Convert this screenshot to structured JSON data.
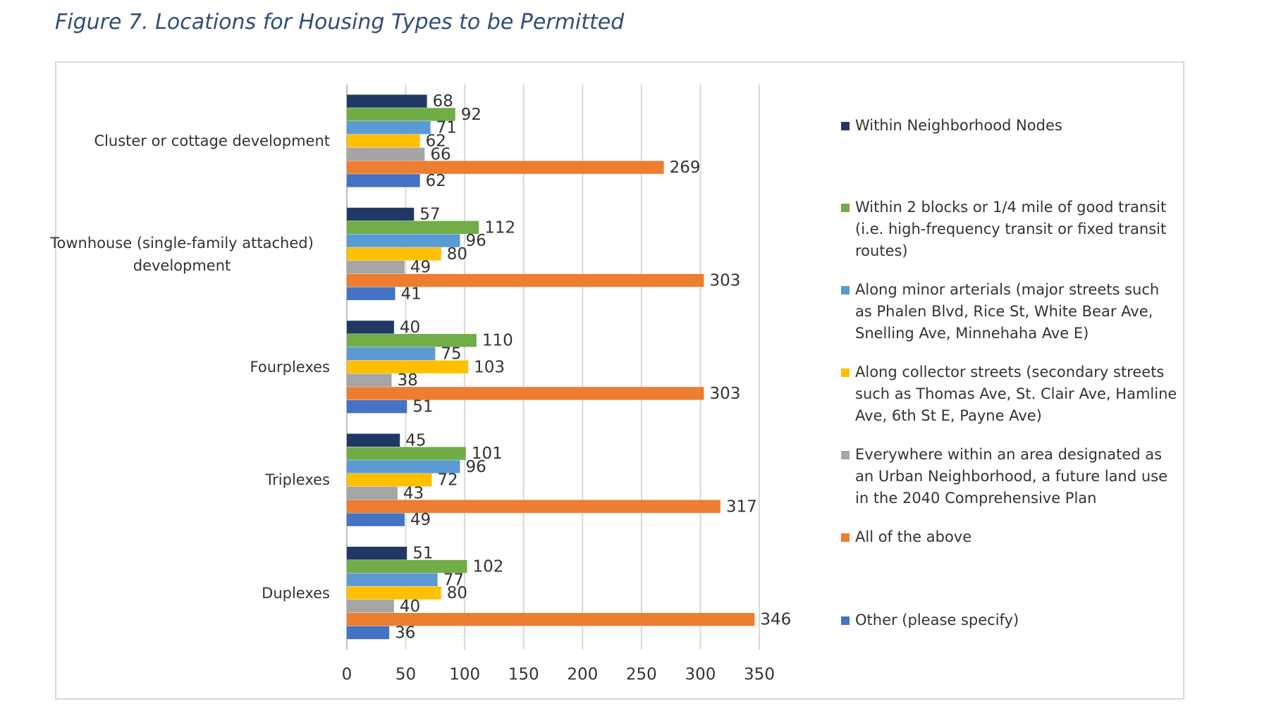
{
  "chart_data": {
    "type": "hbar-grouped",
    "title": "Figure 7. Locations for Housing Types to be Permitted",
    "categories": [
      "Cluster or cottage development",
      "Townhouse (single-family attached) development",
      "Fourplexes",
      "Triplexes",
      "Duplexes"
    ],
    "series": [
      {
        "name": "Within Neighborhood Nodes",
        "color": "#203864",
        "values": [
          68,
          57,
          40,
          45,
          51
        ]
      },
      {
        "name": "Within 2 blocks or 1/4 mile of good transit (i.e. high-frequency transit or fixed transit routes)",
        "color": "#70ad47",
        "values": [
          92,
          112,
          110,
          101,
          102
        ]
      },
      {
        "name": "Along minor arterials (major streets such as Phalen Blvd, Rice St, White Bear Ave, Snelling Ave, Minnehaha Ave E)",
        "color": "#5b9bd5",
        "values": [
          71,
          96,
          75,
          96,
          77
        ]
      },
      {
        "name": "Along collector streets (secondary streets such as Thomas Ave, St. Clair Ave, Hamline Ave, 6th St E, Payne Ave)",
        "color": "#ffc000",
        "values": [
          62,
          80,
          103,
          72,
          80
        ]
      },
      {
        "name": "Everywhere within an area designated as an Urban Neighborhood, a future land use in the 2040 Comprehensive Plan",
        "color": "#a5a5a5",
        "values": [
          66,
          49,
          38,
          43,
          40
        ]
      },
      {
        "name": "All of the above",
        "color": "#ed7d31",
        "values": [
          269,
          303,
          303,
          317,
          346
        ]
      },
      {
        "name": "Other (please specify)",
        "color": "#4472c4",
        "values": [
          62,
          41,
          51,
          49,
          36
        ]
      }
    ],
    "xlim": [
      0,
      350
    ],
    "xticks": [
      0,
      50,
      100,
      150,
      200,
      250,
      300,
      350
    ],
    "grid": true,
    "legend": "right"
  }
}
